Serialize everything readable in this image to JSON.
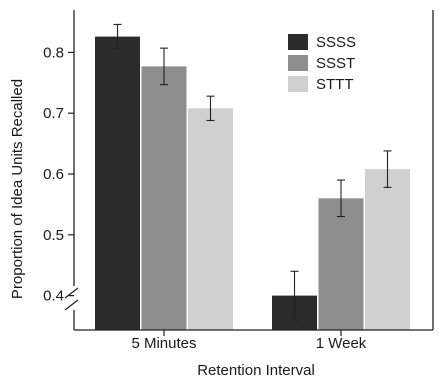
{
  "chart_data": {
    "type": "bar",
    "title": "",
    "xlabel": "Retention Interval",
    "ylabel": "Proportion of Idea Units Recalled",
    "categories": [
      "5 Minutes",
      "1 Week"
    ],
    "ylim": [
      0.35,
      0.85
    ],
    "y_ticks": [
      "0.4",
      "0.5",
      "0.6",
      "0.7",
      "0.8"
    ],
    "axis_break": true,
    "grid": false,
    "legend_position": "top-right",
    "series": [
      {
        "name": "SSSS",
        "color": "#2b2b2b",
        "values": [
          0.826,
          0.4
        ],
        "errors": [
          0.02,
          0.04
        ]
      },
      {
        "name": "SSST",
        "color": "#8e8e8e",
        "values": [
          0.777,
          0.56
        ],
        "errors": [
          0.03,
          0.03
        ]
      },
      {
        "name": "STTT",
        "color": "#d0d0d0",
        "values": [
          0.708,
          0.608
        ],
        "errors": [
          0.02,
          0.03
        ]
      }
    ]
  }
}
